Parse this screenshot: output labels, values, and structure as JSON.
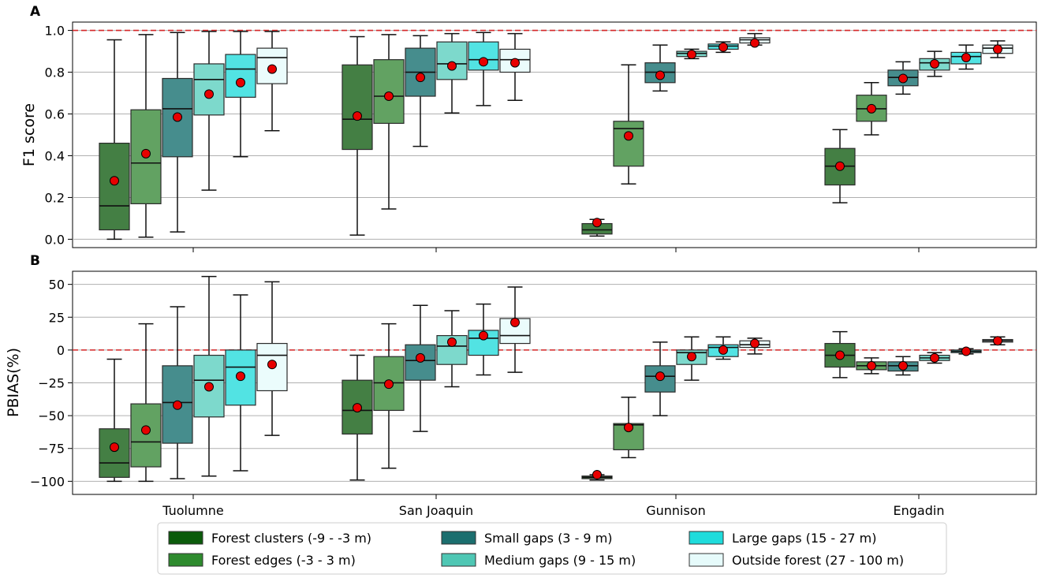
{
  "chart_data": [
    {
      "type": "box",
      "panel_label": "A",
      "ylabel": "F1 score",
      "ylim": [
        -0.04,
        1.04
      ],
      "yticks": [
        0.0,
        0.2,
        0.4,
        0.6,
        0.8,
        1.0
      ],
      "ytick_labels": [
        "0.0",
        "0.2",
        "0.4",
        "0.6",
        "0.8",
        "1.0"
      ],
      "grid": true,
      "reference_line": 1.0,
      "categories": [
        "Tuolumne",
        "San Joaquin",
        "Gunnison",
        "Engadin"
      ],
      "series": [
        {
          "name": "Forest clusters (-9 - -3 m)",
          "boxes": [
            {
              "whislo": 0.0,
              "q1": 0.045,
              "med": 0.16,
              "q3": 0.46,
              "whishi": 0.955,
              "mean": 0.28
            },
            {
              "whislo": 0.02,
              "q1": 0.43,
              "med": 0.575,
              "q3": 0.835,
              "whishi": 0.97,
              "mean": 0.59
            },
            {
              "whislo": 0.015,
              "q1": 0.025,
              "med": 0.045,
              "q3": 0.075,
              "whishi": 0.095,
              "mean": 0.08
            },
            {
              "whislo": 0.175,
              "q1": 0.26,
              "med": 0.35,
              "q3": 0.435,
              "whishi": 0.525,
              "mean": 0.35
            }
          ]
        },
        {
          "name": "Forest edges (-3 - 3 m)",
          "boxes": [
            {
              "whislo": 0.01,
              "q1": 0.17,
              "med": 0.365,
              "q3": 0.62,
              "whishi": 0.98,
              "mean": 0.41
            },
            {
              "whislo": 0.145,
              "q1": 0.555,
              "med": 0.685,
              "q3": 0.86,
              "whishi": 0.98,
              "mean": 0.685
            },
            {
              "whislo": 0.265,
              "q1": 0.35,
              "med": 0.53,
              "q3": 0.565,
              "whishi": 0.835,
              "mean": 0.495
            },
            {
              "whislo": 0.5,
              "q1": 0.565,
              "med": 0.625,
              "q3": 0.69,
              "whishi": 0.75,
              "mean": 0.625
            }
          ]
        },
        {
          "name": "Small gaps (3 - 9 m)",
          "boxes": [
            {
              "whislo": 0.035,
              "q1": 0.395,
              "med": 0.625,
              "q3": 0.77,
              "whishi": 0.99,
              "mean": 0.585
            },
            {
              "whislo": 0.445,
              "q1": 0.685,
              "med": 0.8,
              "q3": 0.915,
              "whishi": 0.975,
              "mean": 0.775
            },
            {
              "whislo": 0.71,
              "q1": 0.75,
              "med": 0.8,
              "q3": 0.845,
              "whishi": 0.93,
              "mean": 0.785
            },
            {
              "whislo": 0.695,
              "q1": 0.735,
              "med": 0.775,
              "q3": 0.81,
              "whishi": 0.85,
              "mean": 0.77
            }
          ]
        },
        {
          "name": "Medium gaps (9 - 15 m)",
          "boxes": [
            {
              "whislo": 0.235,
              "q1": 0.595,
              "med": 0.765,
              "q3": 0.84,
              "whishi": 0.995,
              "mean": 0.695
            },
            {
              "whislo": 0.605,
              "q1": 0.765,
              "med": 0.84,
              "q3": 0.945,
              "whishi": 0.985,
              "mean": 0.83
            },
            {
              "whislo": 0.865,
              "q1": 0.875,
              "med": 0.89,
              "q3": 0.9,
              "whishi": 0.91,
              "mean": 0.885
            },
            {
              "whislo": 0.78,
              "q1": 0.81,
              "med": 0.845,
              "q3": 0.865,
              "whishi": 0.9,
              "mean": 0.84
            }
          ]
        },
        {
          "name": "Large gaps (15 - 27 m)",
          "boxes": [
            {
              "whislo": 0.395,
              "q1": 0.68,
              "med": 0.815,
              "q3": 0.885,
              "whishi": 0.995,
              "mean": 0.75
            },
            {
              "whislo": 0.64,
              "q1": 0.81,
              "med": 0.86,
              "q3": 0.945,
              "whishi": 0.99,
              "mean": 0.85
            },
            {
              "whislo": 0.895,
              "q1": 0.91,
              "med": 0.925,
              "q3": 0.935,
              "whishi": 0.945,
              "mean": 0.92
            },
            {
              "whislo": 0.815,
              "q1": 0.84,
              "med": 0.875,
              "q3": 0.895,
              "whishi": 0.93,
              "mean": 0.87
            }
          ]
        },
        {
          "name": "Outside forest (27 - 100 m)",
          "boxes": [
            {
              "whislo": 0.52,
              "q1": 0.745,
              "med": 0.87,
              "q3": 0.915,
              "whishi": 0.995,
              "mean": 0.815
            },
            {
              "whislo": 0.665,
              "q1": 0.8,
              "med": 0.86,
              "q3": 0.91,
              "whishi": 0.985,
              "mean": 0.845
            },
            {
              "whislo": 0.93,
              "q1": 0.94,
              "med": 0.955,
              "q3": 0.965,
              "whishi": 0.985,
              "mean": 0.94
            },
            {
              "whislo": 0.87,
              "q1": 0.89,
              "med": 0.915,
              "q3": 0.93,
              "whishi": 0.95,
              "mean": 0.91
            }
          ]
        }
      ]
    },
    {
      "type": "box",
      "panel_label": "B",
      "ylabel": "PBIAS(%)",
      "ylim": [
        -110,
        60
      ],
      "yticks": [
        -100,
        -75,
        -50,
        -25,
        0,
        25,
        50
      ],
      "ytick_labels": [
        "−100",
        "−75",
        "−50",
        "−25",
        "0",
        "25",
        "50"
      ],
      "grid": true,
      "reference_line": 0,
      "categories": [
        "Tuolumne",
        "San Joaquin",
        "Gunnison",
        "Engadin"
      ],
      "series": [
        {
          "name": "Forest clusters (-9 - -3 m)",
          "boxes": [
            {
              "whislo": -100,
              "q1": -97,
              "med": -86,
              "q3": -60,
              "whishi": -7,
              "mean": -74
            },
            {
              "whislo": -99,
              "q1": -64,
              "med": -46,
              "q3": -23,
              "whishi": -4,
              "mean": -44
            },
            {
              "whislo": -99,
              "q1": -98,
              "med": -97,
              "q3": -96,
              "whishi": -95,
              "mean": -95
            },
            {
              "whislo": -21,
              "q1": -13,
              "med": -4,
              "q3": 5,
              "whishi": 14,
              "mean": -4
            }
          ]
        },
        {
          "name": "Forest edges (-3 - 3 m)",
          "boxes": [
            {
              "whislo": -100,
              "q1": -89,
              "med": -70,
              "q3": -41,
              "whishi": 20,
              "mean": -61
            },
            {
              "whislo": -90,
              "q1": -46,
              "med": -25,
              "q3": -5,
              "whishi": 20,
              "mean": -26
            },
            {
              "whislo": -82,
              "q1": -76,
              "med": -57,
              "q3": -56,
              "whishi": -36,
              "mean": -59
            },
            {
              "whislo": -18,
              "q1": -15,
              "med": -12,
              "q3": -9,
              "whishi": -6,
              "mean": -12
            }
          ]
        },
        {
          "name": "Small gaps (3 - 9 m)",
          "boxes": [
            {
              "whislo": -98,
              "q1": -71,
              "med": -40,
              "q3": -12,
              "whishi": 33,
              "mean": -42
            },
            {
              "whislo": -62,
              "q1": -23,
              "med": -8,
              "q3": 4,
              "whishi": 34,
              "mean": -6
            },
            {
              "whislo": -50,
              "q1": -32,
              "med": -20,
              "q3": -12,
              "whishi": 6,
              "mean": -20
            },
            {
              "whislo": -19,
              "q1": -16,
              "med": -12,
              "q3": -9,
              "whishi": -5,
              "mean": -12
            }
          ]
        },
        {
          "name": "Medium gaps (9 - 15 m)",
          "boxes": [
            {
              "whislo": -96,
              "q1": -51,
              "med": -23,
              "q3": -4,
              "whishi": 56,
              "mean": -28
            },
            {
              "whislo": -28,
              "q1": -11,
              "med": 3,
              "q3": 11,
              "whishi": 30,
              "mean": 6
            },
            {
              "whislo": -23,
              "q1": -11,
              "med": -2,
              "q3": 0,
              "whishi": 10,
              "mean": -5
            },
            {
              "whislo": -10,
              "q1": -8,
              "med": -6,
              "q3": -4,
              "whishi": -2,
              "mean": -6
            }
          ]
        },
        {
          "name": "Large gaps (15 - 27 m)",
          "boxes": [
            {
              "whislo": -92,
              "q1": -42,
              "med": -13,
              "q3": 0,
              "whishi": 42,
              "mean": -20
            },
            {
              "whislo": -19,
              "q1": -4,
              "med": 9,
              "q3": 15,
              "whishi": 35,
              "mean": 11
            },
            {
              "whislo": -7,
              "q1": -5,
              "med": 2,
              "q3": 4,
              "whishi": 10,
              "mean": 0
            },
            {
              "whislo": -3,
              "q1": -2,
              "med": -1,
              "q3": 0,
              "whishi": 1,
              "mean": -1
            }
          ]
        },
        {
          "name": "Outside forest (27 - 100 m)",
          "boxes": [
            {
              "whislo": -65,
              "q1": -31,
              "med": -4,
              "q3": 5,
              "whishi": 52,
              "mean": -11
            },
            {
              "whislo": -17,
              "q1": 5,
              "med": 11,
              "q3": 24,
              "whishi": 48,
              "mean": 21
            },
            {
              "whislo": -3,
              "q1": 2,
              "med": 4,
              "q3": 7,
              "whishi": 9,
              "mean": 5
            },
            {
              "whislo": 4,
              "q1": 6,
              "med": 7,
              "q3": 8,
              "whishi": 10,
              "mean": 7
            }
          ]
        }
      ]
    }
  ],
  "legend": {
    "items": [
      {
        "label": "Forest clusters (-9 - -3 m)",
        "color": "#0b5b0b"
      },
      {
        "label": "Small gaps (3 - 9 m)",
        "color": "#1b6e6e"
      },
      {
        "label": "Large gaps (15 - 27 m)",
        "color": "#1fdcdc"
      },
      {
        "label": "Forest edges (-3 - 3 m)",
        "color": "#2e8b2e"
      },
      {
        "label": "Medium gaps (9 - 15 m)",
        "color": "#4fc7b4"
      },
      {
        "label": "Outside forest (27 - 100 m)",
        "color": "#e6fbfb"
      }
    ]
  },
  "colors": {
    "box_fills": [
      "#447f44",
      "#62a262",
      "#468d8d",
      "#7dd9cc",
      "#52e3e3",
      "#ebfcfc"
    ],
    "mean_marker": "#e80000",
    "reference_line": "#d62728",
    "grid": "#b0b0b0"
  }
}
